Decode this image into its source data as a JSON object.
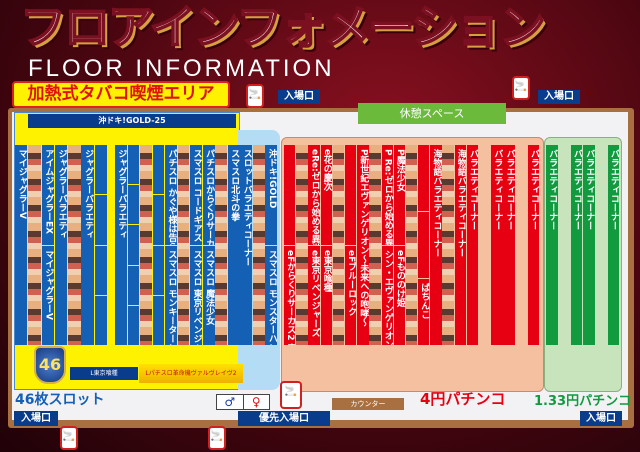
{
  "header": {
    "title": "フロアインフォメーション",
    "subtitle": "FLOOR INFORMATION"
  },
  "smoking_area_label": "加熱式タバコ喫煙エリア",
  "entrances": {
    "top_center": "入場口",
    "top_right": "入場口",
    "bottom_left": "入場口",
    "bottom_priority": "優先入場口",
    "bottom_right": "入場口"
  },
  "rest_space": "休憩スペース",
  "slot": {
    "top_bar": "沖ドキ!GOLD-25",
    "badge": "46",
    "bottom_left_box": "L東京喰種",
    "bottom_right_box": "Lパチスロ革命機ヴァルヴレイヴ2",
    "section_label": "46枚スロット",
    "columns_left": [
      {
        "kind": "text",
        "labels": [
          "マイジャグラーV"
        ]
      },
      {
        "kind": "art",
        "labels": []
      },
      {
        "kind": "text",
        "labels": [
          "アイムジャグラーEX",
          "マイジャグラーV"
        ]
      },
      {
        "kind": "text",
        "labels": [
          "ジャグラーバラエティ"
        ]
      },
      {
        "kind": "art",
        "labels": []
      },
      {
        "kind": "text",
        "labels": [
          "ジャグラーバラエティ"
        ]
      },
      {
        "kind": "text",
        "labels": [
          "",
          "",
          "",
          ""
        ]
      }
    ],
    "columns_right": [
      {
        "kind": "text",
        "labels": [
          "ジャグラーバラエティ"
        ]
      },
      {
        "kind": "text",
        "labels": [
          "",
          "",
          "",
          "",
          ""
        ]
      },
      {
        "kind": "art",
        "labels": []
      },
      {
        "kind": "text",
        "labels": [
          "",
          "",
          "",
          ""
        ]
      },
      {
        "kind": "text",
        "labels": [
          "パチスロ かぐや様は告らせたい",
          "スマスロ モンキーターンV"
        ]
      },
      {
        "kind": "art",
        "labels": []
      },
      {
        "kind": "text",
        "labels": [
          "スマスロ コードギアス",
          "スマスロ 東京リベンジャーズ"
        ]
      },
      {
        "kind": "text",
        "labels": [
          "パチスロからくりサーカス",
          "スマスロ 魔法少女"
        ]
      },
      {
        "kind": "art",
        "labels": []
      },
      {
        "kind": "text",
        "labels": [
          "スマスロ北斗の拳"
        ]
      },
      {
        "kind": "text",
        "labels": [
          "スロットバラエティコーナー"
        ]
      },
      {
        "kind": "art",
        "labels": []
      },
      {
        "kind": "text",
        "labels": [
          "沖ドキ!GOLD",
          "スマスロ モンスターハンターライズ"
        ]
      }
    ]
  },
  "pachinko4": {
    "section_label": "4円パチンコ",
    "columns": [
      {
        "kind": "text",
        "labels": [
          "",
          "eFからくりサーカス2 魔王ver."
        ]
      },
      {
        "kind": "art",
        "labels": []
      },
      {
        "kind": "text",
        "labels": [
          "eRe:ゼロから始める異世界生活",
          "e東京リベンジャーズ"
        ]
      },
      {
        "kind": "text",
        "labels": [
          "e花の慶次",
          "e東京喰種"
        ]
      },
      {
        "kind": "art",
        "labels": []
      },
      {
        "kind": "text",
        "labels": [
          "",
          "eFブルーロック"
        ]
      },
      {
        "kind": "text",
        "labels": [
          "P新世紀エヴァンゲリオン～未来への咆哮～"
        ]
      },
      {
        "kind": "art",
        "labels": []
      },
      {
        "kind": "text",
        "labels": [
          "P Re:ゼロから始める異世界生活",
          "シン・エヴァンゲリオン Type レイ"
        ]
      },
      {
        "kind": "text",
        "labels": [
          "P魔法少女",
          "eFもののけ姫"
        ]
      },
      {
        "kind": "art",
        "labels": []
      },
      {
        "kind": "text",
        "labels": [
          "",
          "",
          "ぱちんこ"
        ]
      },
      {
        "kind": "text",
        "labels": [
          "海物語バラエティコーナー"
        ]
      },
      {
        "kind": "art",
        "labels": []
      },
      {
        "kind": "text",
        "labels": [
          "海物語バラエティコーナー"
        ]
      },
      {
        "kind": "text",
        "labels": [
          "バラエティコーナー"
        ]
      },
      {
        "kind": "gap",
        "labels": []
      },
      {
        "kind": "text",
        "labels": [
          "バラエティコーナー"
        ]
      },
      {
        "kind": "text",
        "labels": [
          "バラエティコーナー"
        ]
      },
      {
        "kind": "gap",
        "labels": []
      },
      {
        "kind": "text",
        "labels": [
          "バラエティコーナー"
        ]
      }
    ]
  },
  "pachinko133": {
    "section_label": "1.33円パチンコ",
    "columns": [
      {
        "kind": "text",
        "labels": [
          "バラエティコーナー"
        ]
      },
      {
        "kind": "gap",
        "labels": []
      },
      {
        "kind": "text",
        "labels": [
          "バラエティコーナー"
        ]
      },
      {
        "kind": "text",
        "labels": [
          "バラエティコーナー"
        ]
      },
      {
        "kind": "gap",
        "labels": []
      },
      {
        "kind": "text",
        "labels": [
          "バラエティコーナー"
        ]
      }
    ]
  },
  "counter": "カウンター",
  "colors": {
    "slot": "#1460b4",
    "pachinko4": "#e60012",
    "pachinko133": "#119a3e",
    "smoking_label": "#fff200"
  },
  "icons": [
    "smoking-area-icon",
    "male-toilet-icon",
    "female-toilet-icon"
  ]
}
